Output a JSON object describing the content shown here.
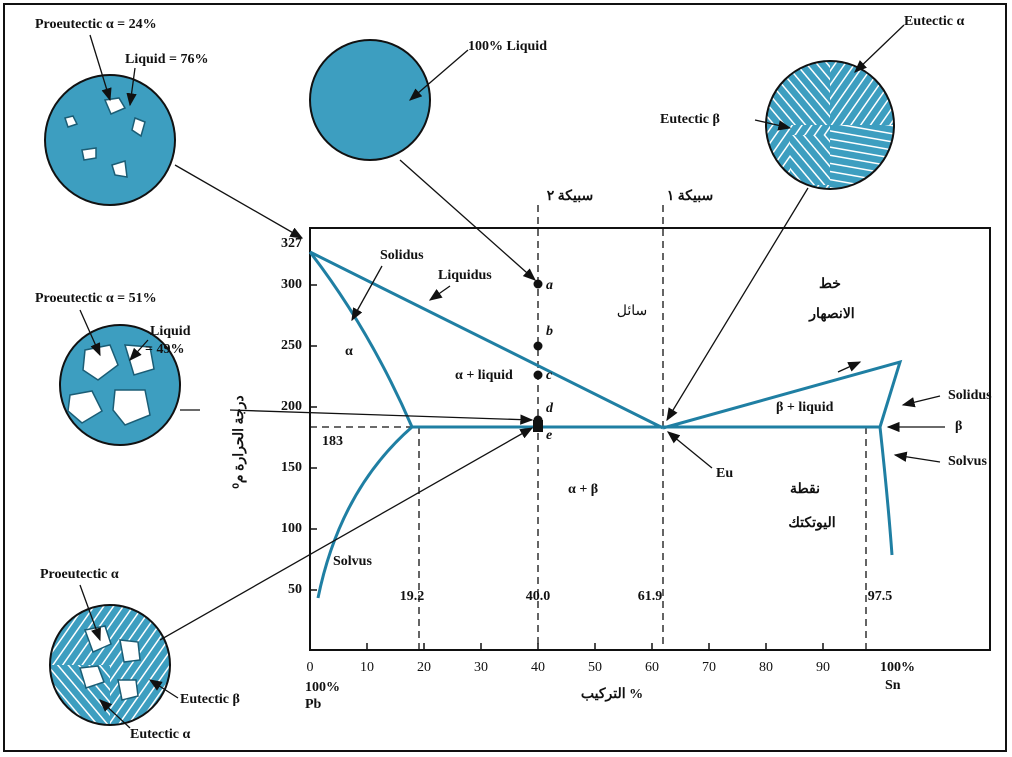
{
  "microstructures": {
    "top_left": {
      "proeutectic": "Proeutectic α = 24%",
      "liquid": "Liquid = 76%"
    },
    "top_center": {
      "liquid": "100% Liquid"
    },
    "top_right": {
      "eutectic_alpha": "Eutectic α",
      "eutectic_beta": "Eutectic β"
    },
    "middle_left": {
      "proeutectic": "Proeutectic α = 51%",
      "liquid_1": "Liquid",
      "liquid_2": "= 49%"
    },
    "bottom_left": {
      "proeutectic": "Proeutectic α",
      "eutectic_beta": "Eutectic β",
      "eutectic_alpha": "Eutectic α"
    }
  },
  "regions": {
    "solidus_left": "Solidus",
    "liquidus": "Liquidus",
    "alpha": "α",
    "alpha_liquid": "α + liquid",
    "alpha_beta": "α + β",
    "beta_liquid": "β + liquid",
    "solidus_right": "Solidus",
    "beta": "β",
    "solvus_left": "Solvus",
    "solvus_right": "Solvus",
    "eutectic": "Eu"
  },
  "points": [
    "a",
    "b",
    "c",
    "d",
    "e"
  ],
  "arabic": {
    "alloy_2": "سبيكة ٢",
    "alloy_1": "سبيكة ١",
    "liquid": "سائل",
    "melting_line_1": "خط",
    "melting_line_2": "الانصهار",
    "eutectic_point_1": "نقطة",
    "eutectic_point_2": "اليوتكتك",
    "y_title": "درجة الحرارة م⁰",
    "x_title": "التركيب %"
  },
  "y_axis": {
    "ticks": [
      "300",
      "250",
      "200",
      "150",
      "100",
      "50"
    ],
    "top": "327",
    "eutectic_temp": "183"
  },
  "x_axis": {
    "ticks": [
      "0",
      "10",
      "20",
      "30",
      "40",
      "50",
      "60",
      "70",
      "80",
      "90"
    ],
    "end": "100%",
    "left_element": "100%",
    "pb": "Pb",
    "sn": "Sn",
    "compositions": [
      "19.2",
      "40.0",
      "61.9",
      "97.5"
    ]
  }
}
